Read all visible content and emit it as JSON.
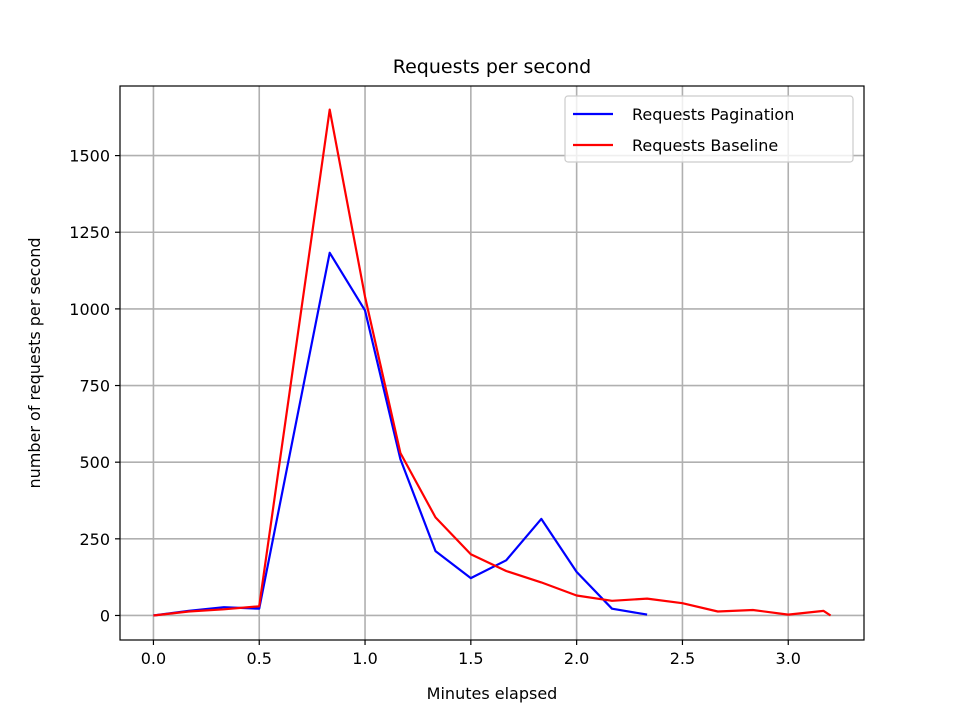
{
  "chart_data": {
    "type": "line",
    "title": "Requests per second",
    "xlabel": "Minutes elapsed",
    "ylabel": "number of requests per second",
    "xlim": [
      -0.158,
      3.358
    ],
    "ylim": [
      -80,
      1727
    ],
    "xticks": [
      0.0,
      0.5,
      1.0,
      1.5,
      2.0,
      2.5,
      3.0
    ],
    "xtick_labels": [
      "0.0",
      "0.5",
      "1.0",
      "1.5",
      "2.0",
      "2.5",
      "3.0"
    ],
    "yticks": [
      0,
      250,
      500,
      750,
      1000,
      1250,
      1500
    ],
    "ytick_labels": [
      "0",
      "250",
      "500",
      "750",
      "1000",
      "1250",
      "1500"
    ],
    "grid": true,
    "legend_position": "top-right",
    "series": [
      {
        "name": "Requests Pagination",
        "color": "#0000ff",
        "x": [
          0.0,
          0.167,
          0.333,
          0.5,
          0.833,
          1.0,
          1.167,
          1.333,
          1.5,
          1.667,
          1.833,
          2.0,
          2.167,
          2.333
        ],
        "y": [
          0,
          15,
          27,
          22,
          1183,
          995,
          510,
          210,
          122,
          180,
          315,
          142,
          22,
          3
        ]
      },
      {
        "name": "Requests Baseline",
        "color": "#ff0000",
        "x": [
          0.0,
          0.167,
          0.333,
          0.5,
          0.833,
          1.0,
          1.167,
          1.333,
          1.5,
          1.667,
          1.833,
          2.0,
          2.167,
          2.333,
          2.5,
          2.667,
          2.833,
          3.0,
          3.167,
          3.2
        ],
        "y": [
          0,
          13,
          20,
          30,
          1650,
          1040,
          530,
          320,
          200,
          145,
          108,
          65,
          48,
          55,
          40,
          13,
          18,
          3,
          15,
          0
        ]
      }
    ]
  }
}
